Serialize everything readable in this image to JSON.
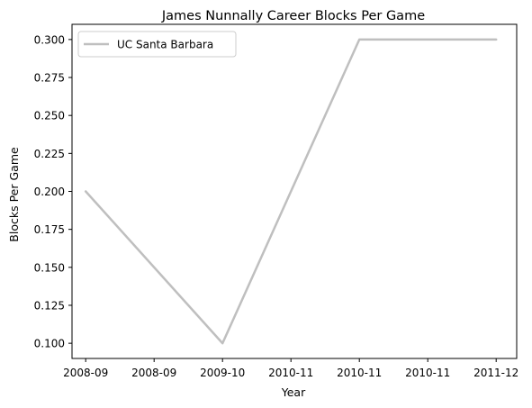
{
  "chart_data": {
    "type": "line",
    "title": "James Nunnally Career Blocks Per Game",
    "xlabel": "Year",
    "ylabel": "Blocks Per Game",
    "x": [
      0,
      1,
      2,
      3
    ],
    "xlim": [
      -0.1,
      3.15
    ],
    "xticks": [
      0,
      0.5,
      1,
      1.5,
      2,
      2.5,
      3
    ],
    "xtick_labels": [
      "2008-09",
      "2008-09",
      "2009-10",
      "2010-11",
      "2010-11",
      "2010-11",
      "2011-12"
    ],
    "ylim": [
      0.09,
      0.31
    ],
    "yticks": [
      0.1,
      0.125,
      0.15,
      0.175,
      0.2,
      0.225,
      0.25,
      0.275,
      0.3
    ],
    "ytick_labels": [
      "0.100",
      "0.125",
      "0.150",
      "0.175",
      "0.200",
      "0.225",
      "0.250",
      "0.275",
      "0.300"
    ],
    "series": [
      {
        "name": "UC Santa Barbara",
        "values": [
          0.2,
          0.1,
          0.3,
          0.3
        ],
        "color": "#bfbfbf"
      }
    ],
    "legend_position": "top-left",
    "grid": false
  }
}
